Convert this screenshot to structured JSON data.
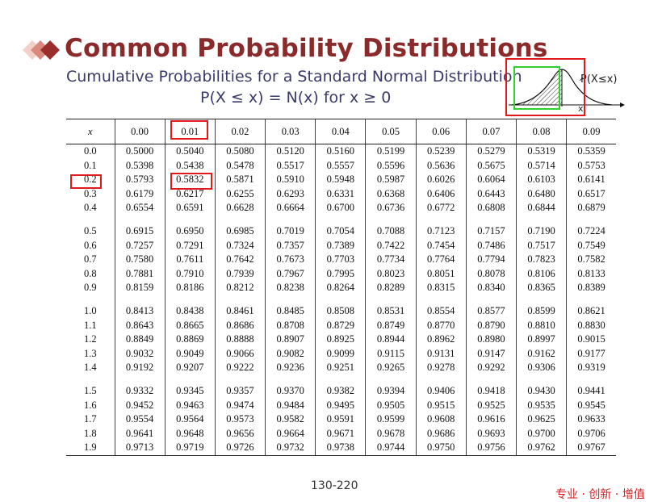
{
  "header": {
    "title": "Common Probability Distributions",
    "subtitle": "Cumulative Probabilities for a Standard Normal Distribution",
    "formula": "P(X ≤ x) = N(x) for x ≥ 0"
  },
  "figure": {
    "label": "P(X≤x)",
    "axis_label": "x"
  },
  "table": {
    "headers": [
      "x",
      "0.00",
      "0.01",
      "0.02",
      "0.03",
      "0.04",
      "0.05",
      "0.06",
      "0.07",
      "0.08",
      "0.09"
    ],
    "groups": [
      [
        [
          "0.0",
          "0.5000",
          "0.5040",
          "0.5080",
          "0.5120",
          "0.5160",
          "0.5199",
          "0.5239",
          "0.5279",
          "0.5319",
          "0.5359"
        ],
        [
          "0.1",
          "0.5398",
          "0.5438",
          "0.5478",
          "0.5517",
          "0.5557",
          "0.5596",
          "0.5636",
          "0.5675",
          "0.5714",
          "0.5753"
        ],
        [
          "0.2",
          "0.5793",
          "0.5832",
          "0.5871",
          "0.5910",
          "0.5948",
          "0.5987",
          "0.6026",
          "0.6064",
          "0.6103",
          "0.6141"
        ],
        [
          "0.3",
          "0.6179",
          "0.6217",
          "0.6255",
          "0.6293",
          "0.6331",
          "0.6368",
          "0.6406",
          "0.6443",
          "0.6480",
          "0.6517"
        ],
        [
          "0.4",
          "0.6554",
          "0.6591",
          "0.6628",
          "0.6664",
          "0.6700",
          "0.6736",
          "0.6772",
          "0.6808",
          "0.6844",
          "0.6879"
        ]
      ],
      [
        [
          "0.5",
          "0.6915",
          "0.6950",
          "0.6985",
          "0.7019",
          "0.7054",
          "0.7088",
          "0.7123",
          "0.7157",
          "0.7190",
          "0.7224"
        ],
        [
          "0.6",
          "0.7257",
          "0.7291",
          "0.7324",
          "0.7357",
          "0.7389",
          "0.7422",
          "0.7454",
          "0.7486",
          "0.7517",
          "0.7549"
        ],
        [
          "0.7",
          "0.7580",
          "0.7611",
          "0.7642",
          "0.7673",
          "0.7703",
          "0.7734",
          "0.7764",
          "0.7794",
          "0.7823",
          "0.7582"
        ],
        [
          "0.8",
          "0.7881",
          "0.7910",
          "0.7939",
          "0.7967",
          "0.7995",
          "0.8023",
          "0.8051",
          "0.8078",
          "0.8106",
          "0.8133"
        ],
        [
          "0.9",
          "0.8159",
          "0.8186",
          "0.8212",
          "0.8238",
          "0.8264",
          "0.8289",
          "0.8315",
          "0.8340",
          "0.8365",
          "0.8389"
        ]
      ],
      [
        [
          "1.0",
          "0.8413",
          "0.8438",
          "0.8461",
          "0.8485",
          "0.8508",
          "0.8531",
          "0.8554",
          "0.8577",
          "0.8599",
          "0.8621"
        ],
        [
          "1.1",
          "0.8643",
          "0.8665",
          "0.8686",
          "0.8708",
          "0.8729",
          "0.8749",
          "0.8770",
          "0.8790",
          "0.8810",
          "0.8830"
        ],
        [
          "1.2",
          "0.8849",
          "0.8869",
          "0.8888",
          "0.8907",
          "0.8925",
          "0.8944",
          "0.8962",
          "0.8980",
          "0.8997",
          "0.9015"
        ],
        [
          "1.3",
          "0.9032",
          "0.9049",
          "0.9066",
          "0.9082",
          "0.9099",
          "0.9115",
          "0.9131",
          "0.9147",
          "0.9162",
          "0.9177"
        ],
        [
          "1.4",
          "0.9192",
          "0.9207",
          "0.9222",
          "0.9236",
          "0.9251",
          "0.9265",
          "0.9278",
          "0.9292",
          "0.9306",
          "0.9319"
        ]
      ],
      [
        [
          "1.5",
          "0.9332",
          "0.9345",
          "0.9357",
          "0.9370",
          "0.9382",
          "0.9394",
          "0.9406",
          "0.9418",
          "0.9430",
          "0.9441"
        ],
        [
          "1.6",
          "0.9452",
          "0.9463",
          "0.9474",
          "0.9484",
          "0.9495",
          "0.9505",
          "0.9515",
          "0.9525",
          "0.9535",
          "0.9545"
        ],
        [
          "1.7",
          "0.9554",
          "0.9564",
          "0.9573",
          "0.9582",
          "0.9591",
          "0.9599",
          "0.9608",
          "0.9616",
          "0.9625",
          "0.9633"
        ],
        [
          "1.8",
          "0.9641",
          "0.9648",
          "0.9656",
          "0.9664",
          "0.9671",
          "0.9678",
          "0.9686",
          "0.9693",
          "0.9700",
          "0.9706"
        ],
        [
          "1.9",
          "0.9713",
          "0.9719",
          "0.9726",
          "0.9732",
          "0.9738",
          "0.9744",
          "0.9750",
          "0.9756",
          "0.9762",
          "0.9767"
        ]
      ]
    ],
    "highlight_color": "#e01a1a",
    "highlight_green": "#2fd12f"
  },
  "footer": {
    "page": "130-220",
    "slogan": "专业 · 创新 · 增值"
  },
  "colors": {
    "title": "#8b2a2a",
    "subtitle": "#3a3a6a",
    "logo_dark": "#9b2d2d",
    "logo_light": "#e9b8b0"
  }
}
